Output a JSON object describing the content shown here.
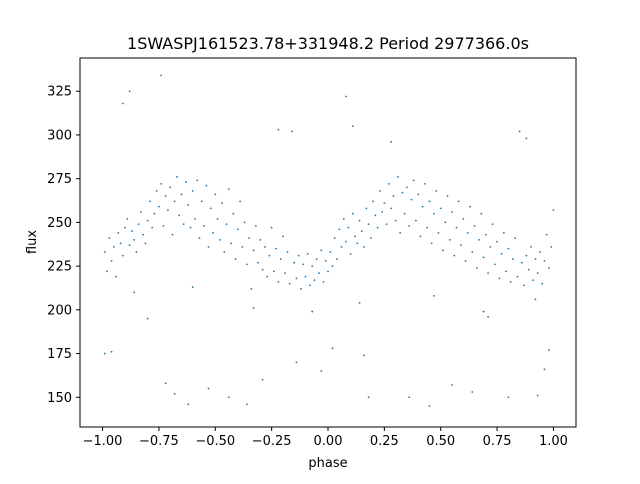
{
  "chart_data": {
    "type": "scatter",
    "title": "1SWASPJ161523.78+331948.2 Period 2977366.0s",
    "xlabel": "phase",
    "ylabel": "flux",
    "xlim": [
      -1.1,
      1.1
    ],
    "ylim": [
      133,
      344
    ],
    "x_ticks": [
      -1.0,
      -0.75,
      -0.5,
      -0.25,
      0.0,
      0.25,
      0.5,
      0.75,
      1.0
    ],
    "x_tick_labels": [
      "−1.00",
      "−0.75",
      "−0.50",
      "−0.25",
      "0.00",
      "0.25",
      "0.50",
      "0.75",
      "1.00"
    ],
    "y_ticks": [
      150,
      175,
      200,
      225,
      250,
      275,
      300,
      325
    ],
    "y_tick_labels": [
      "150",
      "175",
      "200",
      "225",
      "250",
      "275",
      "300",
      "325"
    ],
    "grid": false,
    "legend": "none",
    "marker_color": "#1f77b4",
    "series": [
      {
        "values_note_free": true,
        "points": [
          [
            -0.99,
            233
          ],
          [
            -0.98,
            222
          ],
          [
            -0.97,
            241
          ],
          [
            -0.96,
            228
          ],
          [
            -0.95,
            236
          ],
          [
            -0.94,
            219
          ],
          [
            -0.93,
            244
          ],
          [
            -0.92,
            238
          ],
          [
            -0.91,
            231
          ],
          [
            -0.9,
            247
          ],
          [
            -0.89,
            252
          ],
          [
            -0.88,
            237
          ],
          [
            -0.87,
            245
          ],
          [
            -0.86,
            240
          ],
          [
            -0.85,
            233
          ],
          [
            -0.84,
            249
          ],
          [
            -0.83,
            256
          ],
          [
            -0.82,
            243
          ],
          [
            -0.81,
            238
          ],
          [
            -0.8,
            251
          ],
          [
            -0.79,
            262
          ],
          [
            -0.78,
            247
          ],
          [
            -0.77,
            255
          ],
          [
            -0.76,
            268
          ],
          [
            -0.75,
            259
          ],
          [
            -0.74,
            272
          ],
          [
            -0.73,
            248
          ],
          [
            -0.72,
            265
          ],
          [
            -0.71,
            257
          ],
          [
            -0.7,
            270
          ],
          [
            -0.69,
            243
          ],
          [
            -0.68,
            262
          ],
          [
            -0.67,
            276
          ],
          [
            -0.66,
            254
          ],
          [
            -0.65,
            266
          ],
          [
            -0.64,
            249
          ],
          [
            -0.63,
            273
          ],
          [
            -0.62,
            260
          ],
          [
            -0.61,
            247
          ],
          [
            -0.6,
            268
          ],
          [
            -0.59,
            252
          ],
          [
            -0.58,
            274
          ],
          [
            -0.57,
            241
          ],
          [
            -0.56,
            262
          ],
          [
            -0.55,
            248
          ],
          [
            -0.54,
            271
          ],
          [
            -0.53,
            236
          ],
          [
            -0.52,
            258
          ],
          [
            -0.51,
            244
          ],
          [
            -0.5,
            266
          ],
          [
            -0.49,
            252
          ],
          [
            -0.48,
            240
          ],
          [
            -0.47,
            261
          ],
          [
            -0.46,
            233
          ],
          [
            -0.45,
            249
          ],
          [
            -0.44,
            269
          ],
          [
            -0.43,
            238
          ],
          [
            -0.42,
            255
          ],
          [
            -0.41,
            229
          ],
          [
            -0.4,
            246
          ],
          [
            -0.39,
            262
          ],
          [
            -0.38,
            236
          ],
          [
            -0.37,
            250
          ],
          [
            -0.36,
            226
          ],
          [
            -0.35,
            241
          ],
          [
            -0.34,
            212
          ],
          [
            -0.33,
            234
          ],
          [
            -0.32,
            248
          ],
          [
            -0.31,
            227
          ],
          [
            -0.3,
            240
          ],
          [
            -0.29,
            223
          ],
          [
            -0.28,
            236
          ],
          [
            -0.27,
            219
          ],
          [
            -0.26,
            231
          ],
          [
            -0.25,
            247
          ],
          [
            -0.24,
            222
          ],
          [
            -0.23,
            235
          ],
          [
            -0.22,
            216
          ],
          [
            -0.21,
            229
          ],
          [
            -0.2,
            242
          ],
          [
            -0.19,
            221
          ],
          [
            -0.18,
            233
          ],
          [
            -0.17,
            215
          ],
          [
            -0.16,
            302
          ],
          [
            -0.15,
            227
          ],
          [
            -0.14,
            218
          ],
          [
            -0.13,
            231
          ],
          [
            -0.12,
            212
          ],
          [
            -0.11,
            226
          ],
          [
            -0.1,
            219
          ],
          [
            -0.09,
            232
          ],
          [
            -0.08,
            214
          ],
          [
            -0.07,
            225
          ],
          [
            -0.06,
            217
          ],
          [
            -0.05,
            229
          ],
          [
            -0.04,
            221
          ],
          [
            -0.03,
            234
          ],
          [
            -0.02,
            216
          ],
          [
            -0.01,
            228
          ],
          [
            0.0,
            222
          ],
          [
            0.01,
            233
          ],
          [
            0.02,
            225
          ],
          [
            0.03,
            241
          ],
          [
            0.04,
            229
          ],
          [
            0.05,
            246
          ],
          [
            0.06,
            236
          ],
          [
            0.07,
            252
          ],
          [
            0.08,
            239
          ],
          [
            0.09,
            247
          ],
          [
            0.1,
            232
          ],
          [
            0.11,
            255
          ],
          [
            0.12,
            242
          ],
          [
            0.13,
            238
          ],
          [
            0.14,
            251
          ],
          [
            0.15,
            245
          ],
          [
            0.16,
            236
          ],
          [
            0.17,
            258
          ],
          [
            0.18,
            249
          ],
          [
            0.19,
            241
          ],
          [
            0.2,
            262
          ],
          [
            0.21,
            254
          ],
          [
            0.22,
            247
          ],
          [
            0.23,
            268
          ],
          [
            0.24,
            256
          ],
          [
            0.25,
            261
          ],
          [
            0.26,
            249
          ],
          [
            0.27,
            272
          ],
          [
            0.28,
            258
          ],
          [
            0.29,
            265
          ],
          [
            0.3,
            251
          ],
          [
            0.31,
            276
          ],
          [
            0.32,
            244
          ],
          [
            0.33,
            267
          ],
          [
            0.34,
            255
          ],
          [
            0.35,
            270
          ],
          [
            0.36,
            248
          ],
          [
            0.37,
            263
          ],
          [
            0.38,
            274
          ],
          [
            0.39,
            251
          ],
          [
            0.4,
            266
          ],
          [
            0.41,
            242
          ],
          [
            0.42,
            259
          ],
          [
            0.43,
            272
          ],
          [
            0.44,
            247
          ],
          [
            0.45,
            262
          ],
          [
            0.46,
            238
          ],
          [
            0.47,
            255
          ],
          [
            0.48,
            268
          ],
          [
            0.49,
            244
          ],
          [
            0.5,
            258
          ],
          [
            0.51,
            234
          ],
          [
            0.52,
            250
          ],
          [
            0.53,
            265
          ],
          [
            0.54,
            240
          ],
          [
            0.55,
            256
          ],
          [
            0.56,
            231
          ],
          [
            0.57,
            247
          ],
          [
            0.58,
            262
          ],
          [
            0.59,
            237
          ],
          [
            0.6,
            252
          ],
          [
            0.61,
            228
          ],
          [
            0.62,
            244
          ],
          [
            0.63,
            259
          ],
          [
            0.64,
            233
          ],
          [
            0.65,
            248
          ],
          [
            0.66,
            224
          ],
          [
            0.67,
            240
          ],
          [
            0.68,
            255
          ],
          [
            0.69,
            230
          ],
          [
            0.7,
            243
          ],
          [
            0.71,
            221
          ],
          [
            0.72,
            236
          ],
          [
            0.73,
            249
          ],
          [
            0.74,
            226
          ],
          [
            0.75,
            239
          ],
          [
            0.76,
            218
          ],
          [
            0.77,
            232
          ],
          [
            0.78,
            244
          ],
          [
            0.79,
            222
          ],
          [
            0.8,
            235
          ],
          [
            0.81,
            216
          ],
          [
            0.82,
            229
          ],
          [
            0.83,
            241
          ],
          [
            0.84,
            219
          ],
          [
            0.85,
            302
          ],
          [
            0.86,
            227
          ],
          [
            0.87,
            214
          ],
          [
            0.88,
            231
          ],
          [
            0.89,
            223
          ],
          [
            0.9,
            236
          ],
          [
            0.91,
            217
          ],
          [
            0.92,
            229
          ],
          [
            0.93,
            221
          ],
          [
            0.94,
            233
          ],
          [
            0.95,
            215
          ],
          [
            0.96,
            228
          ],
          [
            0.97,
            243
          ],
          [
            0.98,
            224
          ],
          [
            0.99,
            236
          ],
          [
            1.0,
            257
          ],
          [
            -0.99,
            175
          ],
          [
            -0.96,
            176
          ],
          [
            -0.91,
            318
          ],
          [
            -0.88,
            325
          ],
          [
            -0.8,
            195
          ],
          [
            -0.74,
            334
          ],
          [
            -0.72,
            158
          ],
          [
            -0.68,
            152
          ],
          [
            -0.62,
            146
          ],
          [
            -0.53,
            155
          ],
          [
            -0.44,
            150
          ],
          [
            -0.36,
            146
          ],
          [
            -0.29,
            160
          ],
          [
            -0.22,
            303
          ],
          [
            -0.14,
            170
          ],
          [
            -0.07,
            199
          ],
          [
            -0.03,
            165
          ],
          [
            0.02,
            178
          ],
          [
            0.08,
            322
          ],
          [
            0.11,
            305
          ],
          [
            0.16,
            174
          ],
          [
            0.18,
            150
          ],
          [
            0.28,
            296
          ],
          [
            0.36,
            150
          ],
          [
            0.45,
            145
          ],
          [
            0.55,
            157
          ],
          [
            0.64,
            153
          ],
          [
            0.71,
            196
          ],
          [
            0.8,
            150
          ],
          [
            0.88,
            298
          ],
          [
            0.93,
            151
          ],
          [
            0.96,
            166
          ],
          [
            0.98,
            177
          ],
          [
            -0.86,
            210
          ],
          [
            -0.6,
            213
          ],
          [
            -0.33,
            201
          ],
          [
            0.14,
            204
          ],
          [
            0.47,
            208
          ],
          [
            0.69,
            199
          ],
          [
            0.92,
            206
          ]
        ]
      }
    ]
  }
}
